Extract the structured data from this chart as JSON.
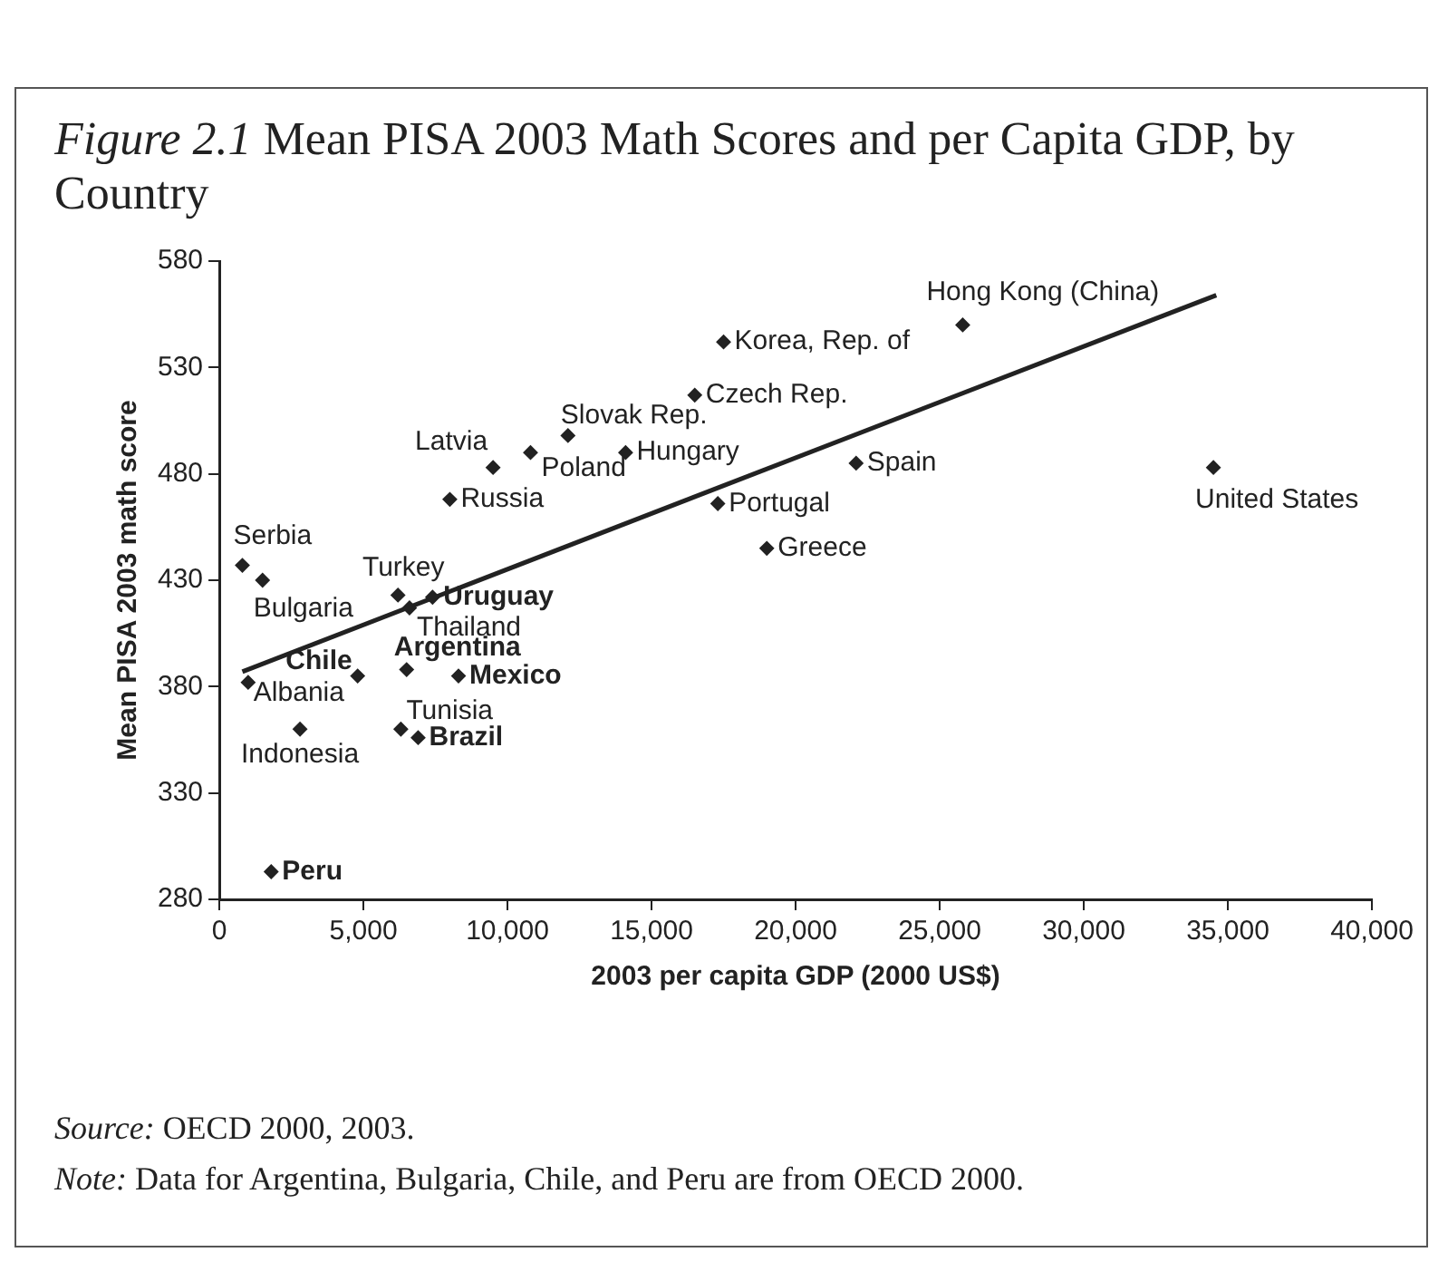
{
  "chart_data": {
    "type": "scatter",
    "title": "$^{}$Figure 2.1 Mean PISA 2003 Math Scores and per Capita GDP, by Country",
    "xlabel": "2003 per capita GDP (2000 US$)",
    "ylabel": "Mean PISA 2003 math score",
    "xlim": [
      0,
      40000
    ],
    "xticks": [
      0,
      {
        "value": 5000,
        "label": "5,000"
      },
      {
        "value": 10000,
        "label": "10,000"
      },
      {
        "value": 15000,
        "label": "15,000"
      },
      {
        "value": 20000,
        "label": "20,000"
      },
      {
        "value": 25000,
        "label": "25,000"
      },
      {
        "value": 30000,
        "label": "30,000"
      },
      {
        "value": 35000,
        "label": "35,000"
      },
      {
        "value": 40000,
        "label": "40,000"
      }
    ],
    "ylim": [
      280,
      580
    ],
    "yticks": [
      280,
      330,
      380,
      430,
      480,
      530,
      580
    ],
    "grid": false,
    "legend": false,
    "series": [
      {
        "color": "#222222",
        "marker": "diamond",
        "x": [
          17500,
          16500,
          12100,
          10800,
          14100,
          9500,
          8000,
          17300,
          19000,
          22100,
          34500,
          25800,
          800,
          1500,
          6200,
          7400,
          6600,
          6500,
          8300,
          4800,
          1000,
          2800,
          6300,
          6900,
          1800
        ],
        "values": [
          542,
          517,
          498,
          490,
          490,
          483,
          468,
          466,
          445,
          485,
          483,
          550,
          437,
          430,
          423,
          422,
          417,
          388,
          385,
          385,
          382,
          360,
          360,
          356,
          293
        ]
      },
      {
        "type": "line",
        "color": "#222222",
        "marker": "none",
        "x": [
          800,
          34600
        ],
        "values": [
          387,
          564
        ]
      }
    ],
    "annotations": [
      {
        "text": "Korea, Rep. of",
        "x": 17500,
        "y": 542
      },
      {
        "text": "Czech Rep.",
        "x": 16500,
        "y": 517
      },
      {
        "text": "Slovak Rep.",
        "x": 12100,
        "y": 498
      },
      {
        "text": "Poland",
        "x": 10800,
        "y": 490
      },
      {
        "text": "Hungary",
        "x": 14100,
        "y": 490
      },
      {
        "text": "Latvia",
        "x": 9500,
        "y": 483
      },
      {
        "text": "Russia",
        "x": 8000,
        "y": 468
      },
      {
        "text": "Portugal",
        "x": 17300,
        "y": 466
      },
      {
        "text": "Greece",
        "x": 19000,
        "y": 445
      },
      {
        "text": "Spain",
        "x": 22100,
        "y": 485
      },
      {
        "text": "United States",
        "x": 34500,
        "y": 483
      },
      {
        "text": "Hong Kong (China)",
        "x": 25800,
        "y": 550
      },
      {
        "text": "Serbia",
        "x": 800,
        "y": 437
      },
      {
        "text": "Bulgaria",
        "x": 1500,
        "y": 430
      },
      {
        "text": "Turkey",
        "x": 6200,
        "y": 423
      },
      {
        "text": "Uruguay",
        "x": 7400,
        "y": 422
      },
      {
        "text": "Thailand",
        "x": 6600,
        "y": 417
      },
      {
        "text": "Argentina",
        "x": 6500,
        "y": 388
      },
      {
        "text": "Mexico",
        "x": 8300,
        "y": 385
      },
      {
        "text": "Chile",
        "x": 4800,
        "y": 385
      },
      {
        "text": "Albania",
        "x": 1000,
        "y": 382
      },
      {
        "text": "Indonesia",
        "x": 2800,
        "y": 360
      },
      {
        "text": "Tunisia",
        "x": 6300,
        "y": 360
      },
      {
        "text": "Brazil",
        "x": 6900,
        "y": 356
      },
      {
        "text": "Peru",
        "x": 1800,
        "y": 293
      },
      "$^{}$Source: OECD 2000, 2003.",
      "$^{}$Note:  Data for Argentina, Bulgaria, Chile, and Peru are from OECD 2000."
    ]
  }
}
